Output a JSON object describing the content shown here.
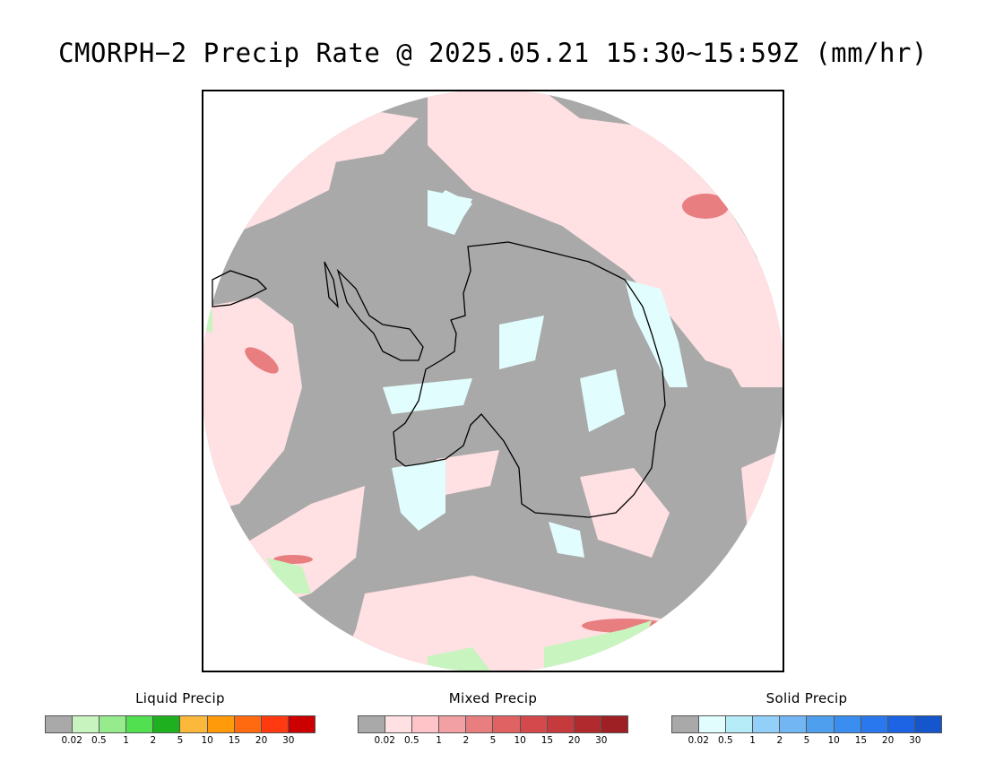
{
  "title": "CMORPH−2 Precip Rate @ 2025.05.21 15:30~15:59Z (mm/hr)",
  "map": {
    "projection": "south-polar-stereographic",
    "land_outline_color": "#000000",
    "background_color": "#a9a9a9"
  },
  "legends": [
    {
      "id": "liquid",
      "title": "Liquid Precip",
      "colors": [
        "#a9a9a9",
        "#c8f5bf",
        "#96ec8c",
        "#50e050",
        "#1fb01f",
        "#fbb83a",
        "#ff9a0a",
        "#ff6a10",
        "#ff3a10",
        "#cc0000"
      ],
      "ticks": [
        "0.02",
        "0.5",
        "1",
        "2",
        "5",
        "10",
        "15",
        "20",
        "30"
      ]
    },
    {
      "id": "mixed",
      "title": "Mixed Precip",
      "colors": [
        "#a9a9a9",
        "#ffe0e3",
        "#ffc4c8",
        "#f2a0a3",
        "#e87e80",
        "#e06262",
        "#d44a4c",
        "#c53a3c",
        "#b02a2e",
        "#9e2024"
      ],
      "ticks": [
        "0.02",
        "0.5",
        "1",
        "2",
        "5",
        "10",
        "15",
        "20",
        "30"
      ]
    },
    {
      "id": "solid",
      "title": "Solid Precip",
      "colors": [
        "#a9a9a9",
        "#e2fdfd",
        "#b6ecf8",
        "#92d0fa",
        "#72b6f4",
        "#4ea0ee",
        "#3a8ef0",
        "#2a78ee",
        "#1c64e4",
        "#1556cc"
      ],
      "ticks": [
        "0.02",
        "0.5",
        "1",
        "2",
        "5",
        "10",
        "15",
        "20",
        "30"
      ]
    }
  ]
}
